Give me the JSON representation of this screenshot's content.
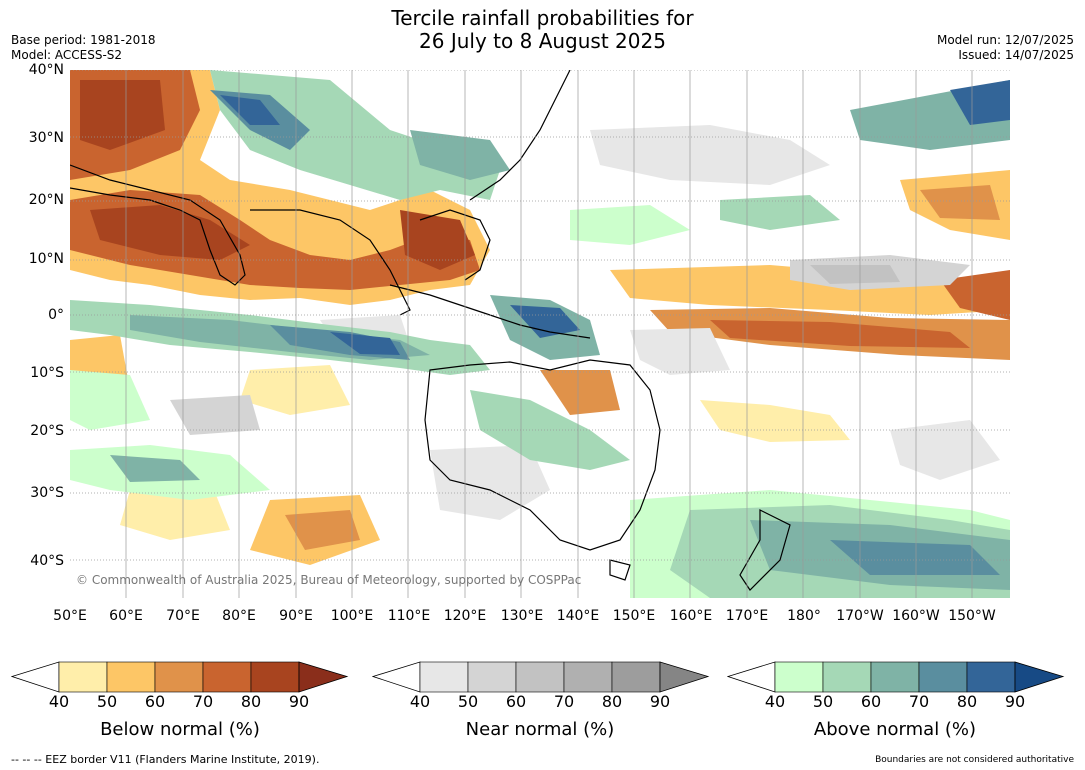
{
  "title_line1": "Tercile rainfall probabilities for",
  "title_line2": "26 July to 8 August 2025",
  "base_period": "Base period: 1981-2018",
  "model": "Model: ACCESS-S2",
  "model_run": "Model run: 12/07/2025",
  "issued": "Issued: 14/07/2025",
  "copyright": "© Commonwealth of Australia 2025, Bureau of Meteorology, supported by COSPPac",
  "lat_labels": [
    "40°N",
    "30°N",
    "20°N",
    "10°N",
    "0°",
    "10°S",
    "20°S",
    "30°S",
    "40°S"
  ],
  "lon_labels": [
    "50°E",
    "60°E",
    "70°E",
    "80°E",
    "90°E",
    "100°E",
    "110°E",
    "120°E",
    "130°E",
    "140°E",
    "150°E",
    "160°E",
    "170°E",
    "180°",
    "170°W",
    "160°W",
    "150°W"
  ],
  "colorbars": {
    "below": {
      "label": "Below normal (%)",
      "ticks": [
        "40",
        "50",
        "60",
        "70",
        "80",
        "90"
      ],
      "colors": [
        "#ffeeaa",
        "#fdc666",
        "#e0924a",
        "#c9642f",
        "#a8441f",
        "#8a2e1b"
      ]
    },
    "near": {
      "label": "Near normal (%)",
      "ticks": [
        "40",
        "50",
        "60",
        "70",
        "80",
        "90"
      ],
      "colors": [
        "#e7e7e7",
        "#d4d4d4",
        "#c2c2c2",
        "#b0b0b0",
        "#9d9d9d",
        "#858585"
      ]
    },
    "above": {
      "label": "Above normal (%)",
      "ticks": [
        "40",
        "50",
        "60",
        "70",
        "80",
        "90"
      ],
      "colors": [
        "#ccffcc",
        "#a5d8b6",
        "#7fb3a6",
        "#5a8e9f",
        "#336598",
        "#174a85"
      ]
    }
  },
  "eez_note": "--  --  -- EEZ border V11 (Flanders Marine Institute, 2019).",
  "boundaries_note": "Boundaries are not considered authoritative"
}
